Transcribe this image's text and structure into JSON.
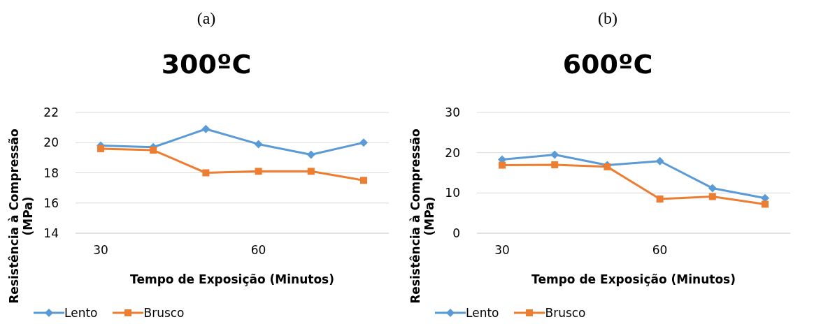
{
  "chart_data": [
    {
      "type": "line",
      "subtitle": "(a)",
      "title": "300ºC",
      "xlabel": "Tempo de Exposição (Minutos)",
      "ylabel": "Resistência à Compressão (MPa)",
      "categories": [
        "30",
        null,
        null,
        "60",
        null,
        null
      ],
      "ylim": [
        14,
        22
      ],
      "yticks": [
        14,
        16,
        18,
        20,
        22
      ],
      "grid": "y",
      "legend": "bottom",
      "line_style": "solid",
      "series": [
        {
          "name": "Lento",
          "color": "#5b9bd5",
          "marker": "diamond",
          "values": [
            19.8,
            19.7,
            20.9,
            19.9,
            19.2,
            20.0
          ]
        },
        {
          "name": "Brusco",
          "color": "#ed7d31",
          "marker": "square",
          "values": [
            19.6,
            19.5,
            18.0,
            18.1,
            18.1,
            17.5
          ]
        }
      ]
    },
    {
      "type": "line",
      "subtitle": "(b)",
      "title": "600ºC",
      "xlabel": "Tempo de Exposição (Minutos)",
      "ylabel": "Resistência à Compressão (MPa)",
      "categories": [
        "30",
        null,
        null,
        "60",
        null,
        null
      ],
      "ylim": [
        0,
        30
      ],
      "yticks": [
        0,
        10,
        20,
        30
      ],
      "grid": "y",
      "legend": "bottom",
      "line_style": "solid",
      "series": [
        {
          "name": "Lento",
          "color": "#5b9bd5",
          "marker": "diamond",
          "values": [
            18.3,
            19.5,
            16.9,
            17.9,
            11.2,
            8.7
          ]
        },
        {
          "name": "Brusco",
          "color": "#ed7d31",
          "marker": "square",
          "values": [
            16.9,
            17.0,
            16.5,
            8.5,
            9.1,
            7.2
          ]
        }
      ]
    }
  ]
}
